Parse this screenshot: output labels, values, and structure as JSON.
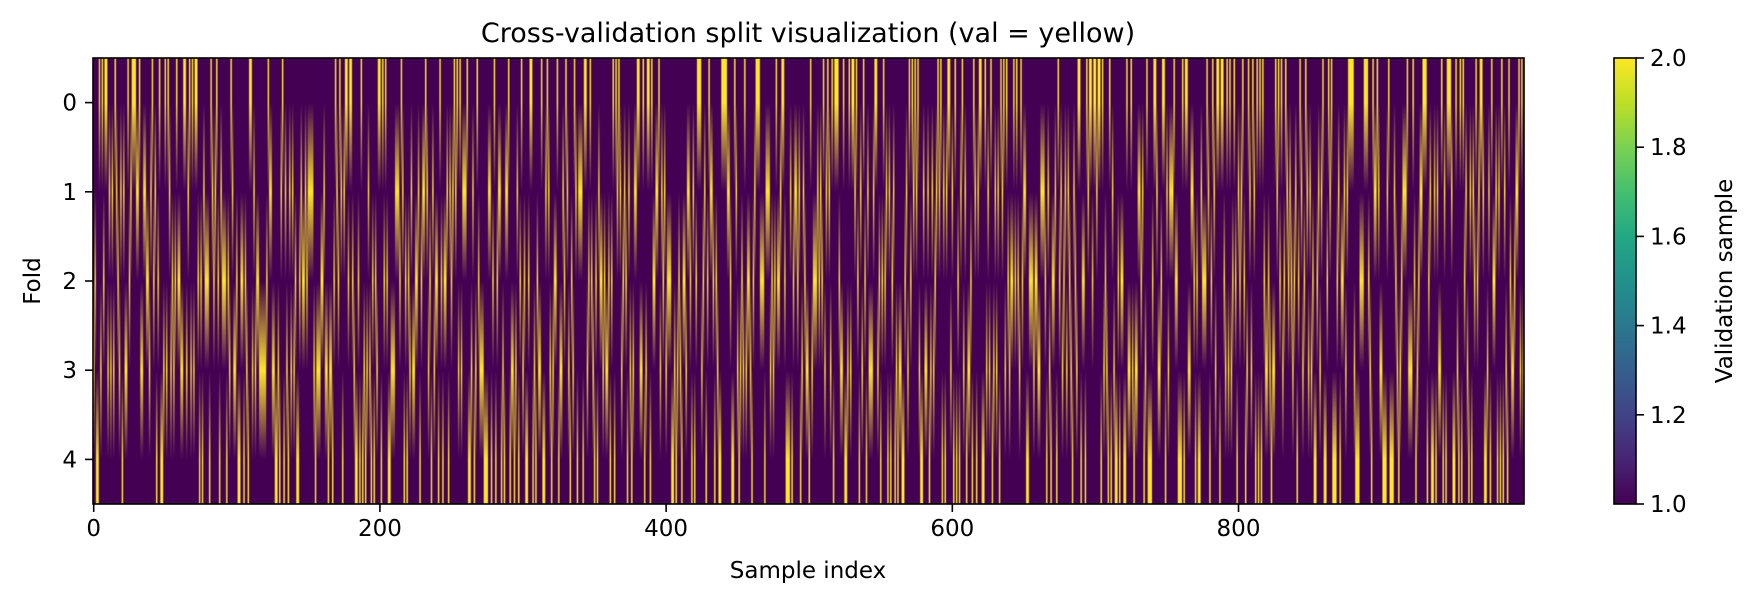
{
  "chart_data": {
    "type": "heatmap",
    "title": "Cross-validation split visualization (val = yellow)",
    "xlabel": "Sample index",
    "ylabel": "Fold",
    "xlim": [
      0,
      999
    ],
    "ylim": [
      -0.5,
      4.5
    ],
    "y_inverted": true,
    "x_ticks": [
      "0",
      "200",
      "400",
      "600",
      "800"
    ],
    "y_ticks": [
      "0",
      "1",
      "2",
      "3",
      "4"
    ],
    "n_samples": 1000,
    "n_folds": 5,
    "fold_size": 200,
    "encoding": "Each sample is a validation sample (value 2) in exactly one fold and a training sample (value 1) in the other four; the assignment of samples to folds is randomly shuffled, giving thin yellow vertical stripes on a dark purple background, with bilinear blending producing faded yellow vertical streaks between fold rows.",
    "values": {
      "training": 1,
      "validation": 2
    },
    "colormap": "viridis",
    "colorbar": {
      "label": "Validation sample",
      "range": [
        1.0,
        2.0
      ],
      "ticks": [
        "1.0",
        "1.2",
        "1.4",
        "1.6",
        "1.8",
        "2.0"
      ]
    },
    "colors": {
      "training": "#440154",
      "validation": "#fde725"
    }
  }
}
